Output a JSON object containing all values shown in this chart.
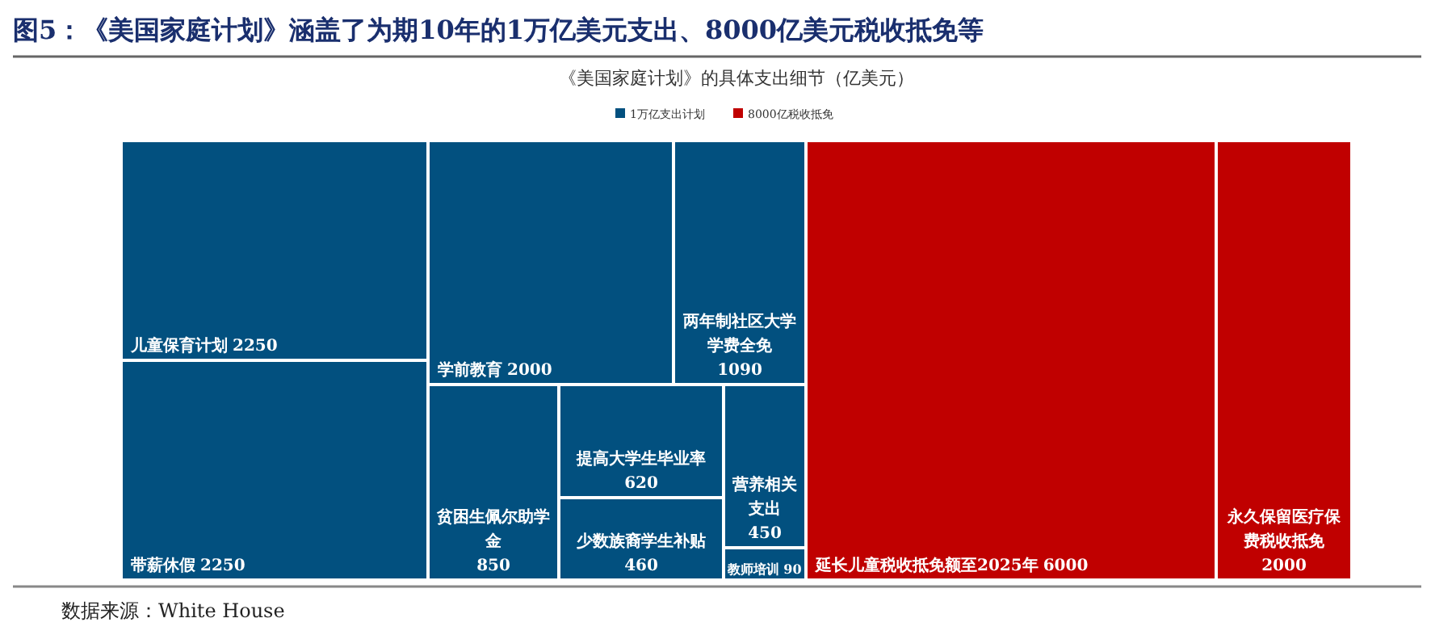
{
  "chart_data": {
    "type": "other",
    "title": "图5：《美国家庭计划》涵盖了为期10年的1万亿美元支出、8000亿美元税收抵免等",
    "subtitle": "《美国家庭计划》的具体支出细节（亿美元）",
    "legend": "top",
    "data_labels": true,
    "categories": [
      "儿童保育计划",
      "带薪休假",
      "学前教育",
      "两年制社区大学学费全免",
      "贫困生佩尔助学金",
      "提高大学生毕业率",
      "少数族裔学生补贴",
      "营养相关支出",
      "教师培训",
      "延长儿童税收抵免额至2025年",
      "永久保留医疗保费税收抵免"
    ],
    "series": [
      {
        "name": "1万亿支出计划",
        "color": "#02507f",
        "values": [
          2250,
          2250,
          2000,
          1090,
          850,
          620,
          460,
          450,
          90,
          null,
          null
        ]
      },
      {
        "name": "8000亿税收抵免",
        "color": "#c00000",
        "values": [
          null,
          null,
          null,
          null,
          null,
          null,
          null,
          null,
          null,
          6000,
          2000
        ]
      }
    ],
    "annotations": [
      "数据来源：White House"
    ]
  }
}
